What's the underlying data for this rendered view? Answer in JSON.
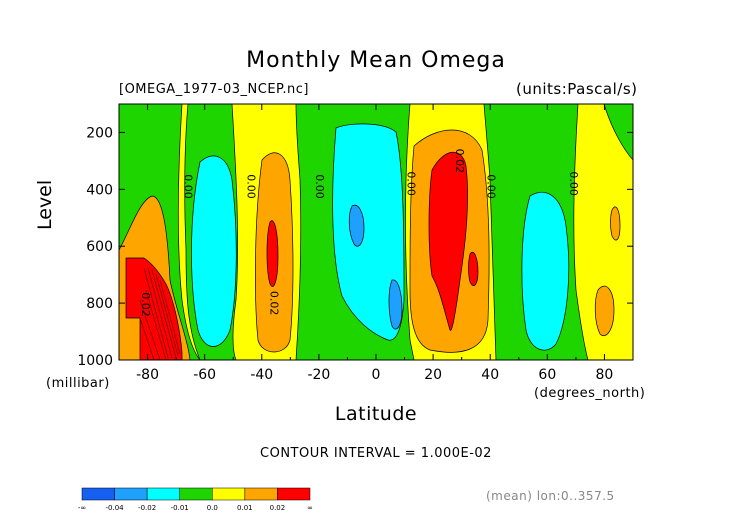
{
  "chart_data": {
    "type": "heatmap",
    "title": "Monthly Mean Omega",
    "file_label": "[OMEGA_1977-03_NCEP.nc]",
    "units_label": "(units:Pascal/s)",
    "xlabel": "Latitude",
    "x_unit": "(degrees_north)",
    "ylabel": "Level",
    "y_unit": "(millibar)",
    "xlim": [
      -90,
      90
    ],
    "ylim": [
      1000,
      100
    ],
    "x_ticks": [
      "-80",
      "-60",
      "-40",
      "-20",
      "0",
      "20",
      "40",
      "60",
      "80"
    ],
    "x_tick_values": [
      -80,
      -60,
      -40,
      -20,
      0,
      20,
      40,
      60,
      80
    ],
    "y_ticks": [
      "200",
      "400",
      "600",
      "800",
      "1000"
    ],
    "y_tick_values": [
      200,
      400,
      600,
      800,
      1000
    ],
    "contour_interval_text": "CONTOUR INTERVAL = 1.000E-02",
    "contour_labels": [
      {
        "text": "0.00",
        "lat": -67,
        "lev": 390
      },
      {
        "text": "0.00",
        "lat": -45,
        "lev": 390
      },
      {
        "text": "0.00",
        "lat": -21,
        "lev": 390
      },
      {
        "text": "0.00",
        "lat": 11,
        "lev": 380
      },
      {
        "text": "0.00",
        "lat": 39,
        "lev": 390
      },
      {
        "text": "0.00",
        "lat": 68,
        "lev": 380
      },
      {
        "text": "0.02",
        "lat": -82,
        "lev": 805
      },
      {
        "text": "0.02",
        "lat": -37,
        "lev": 800
      },
      {
        "text": "0.02",
        "lat": 28,
        "lev": 300
      }
    ],
    "colorbar": {
      "colors": [
        "#1560f0",
        "#1ea0ff",
        "#00ffff",
        "#1fd500",
        "#ffff00",
        "#ffa500",
        "#ff0000"
      ],
      "labels": [
        "-∞",
        "-0.04",
        "-0.02",
        "-0.01",
        "0.0",
        "0.01",
        "0.02",
        "∞"
      ]
    },
    "footer_note": "(mean) lon:0..357.5"
  }
}
